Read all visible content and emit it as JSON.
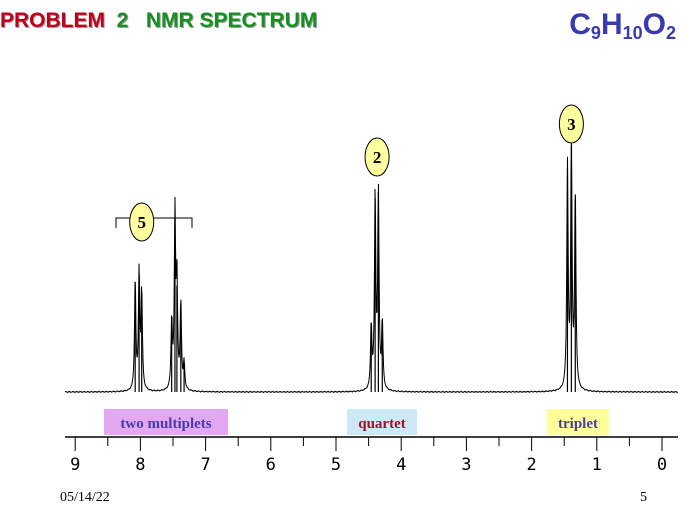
{
  "title": {
    "problem": "PROBLEM",
    "number": "2",
    "spectrum": "NMR SPECTRUM"
  },
  "formula": {
    "C": "C",
    "C_n": "9",
    "H": "H",
    "H_n": "10",
    "O": "O",
    "O_n": "2"
  },
  "footer": {
    "date": "05/14/22",
    "page": "5"
  },
  "colors": {
    "title_red": "#c0001a",
    "title_green": "#16901f",
    "formula_blue": "#3a3ab0",
    "badge_fill": "#ffffa0",
    "label_bg_multiplets": "#e2a8f0",
    "label_fg_multiplets": "#4a3ab0",
    "label_bg_quartet": "#cfe8f8",
    "label_fg_quartet": "#a01020",
    "label_bg_triplet": "#ffff99",
    "label_fg_triplet": "#4a3ab0"
  },
  "chart_data": {
    "type": "line",
    "xlabel": "",
    "xlim": [
      9.2,
      -0.05
    ],
    "x_ticks": [
      "9",
      "8",
      "7",
      "6",
      "5",
      "4",
      "3",
      "2",
      "1",
      "0"
    ],
    "peaks": [
      {
        "ppm": 8.08,
        "h": 0.58
      },
      {
        "ppm": 8.02,
        "h": 0.62
      },
      {
        "ppm": 7.98,
        "h": 0.52
      },
      {
        "ppm": 7.52,
        "h": 0.36
      },
      {
        "ppm": 7.47,
        "h": 0.92
      },
      {
        "ppm": 7.44,
        "h": 0.56
      },
      {
        "ppm": 7.38,
        "h": 0.46
      },
      {
        "ppm": 7.33,
        "h": 0.14
      },
      {
        "ppm": 4.46,
        "h": 0.34
      },
      {
        "ppm": 4.4,
        "h": 1.02
      },
      {
        "ppm": 4.35,
        "h": 1.05
      },
      {
        "ppm": 4.29,
        "h": 0.36
      },
      {
        "ppm": 1.45,
        "h": 1.18
      },
      {
        "ppm": 1.39,
        "h": 1.3
      },
      {
        "ppm": 1.33,
        "h": 1.04
      }
    ],
    "integrations": [
      {
        "label": "5",
        "ppm": 7.98
      },
      {
        "label": "2",
        "ppm": 4.37
      },
      {
        "label": "3",
        "ppm": 1.39
      }
    ],
    "multiplet_labels": [
      {
        "text": "two multiplets",
        "ppm": 7.7,
        "style": "multiplets"
      },
      {
        "text": "quartet",
        "ppm": 4.3,
        "style": "quartet"
      },
      {
        "text": "triplet",
        "ppm": 1.2,
        "style": "triplet"
      }
    ]
  }
}
